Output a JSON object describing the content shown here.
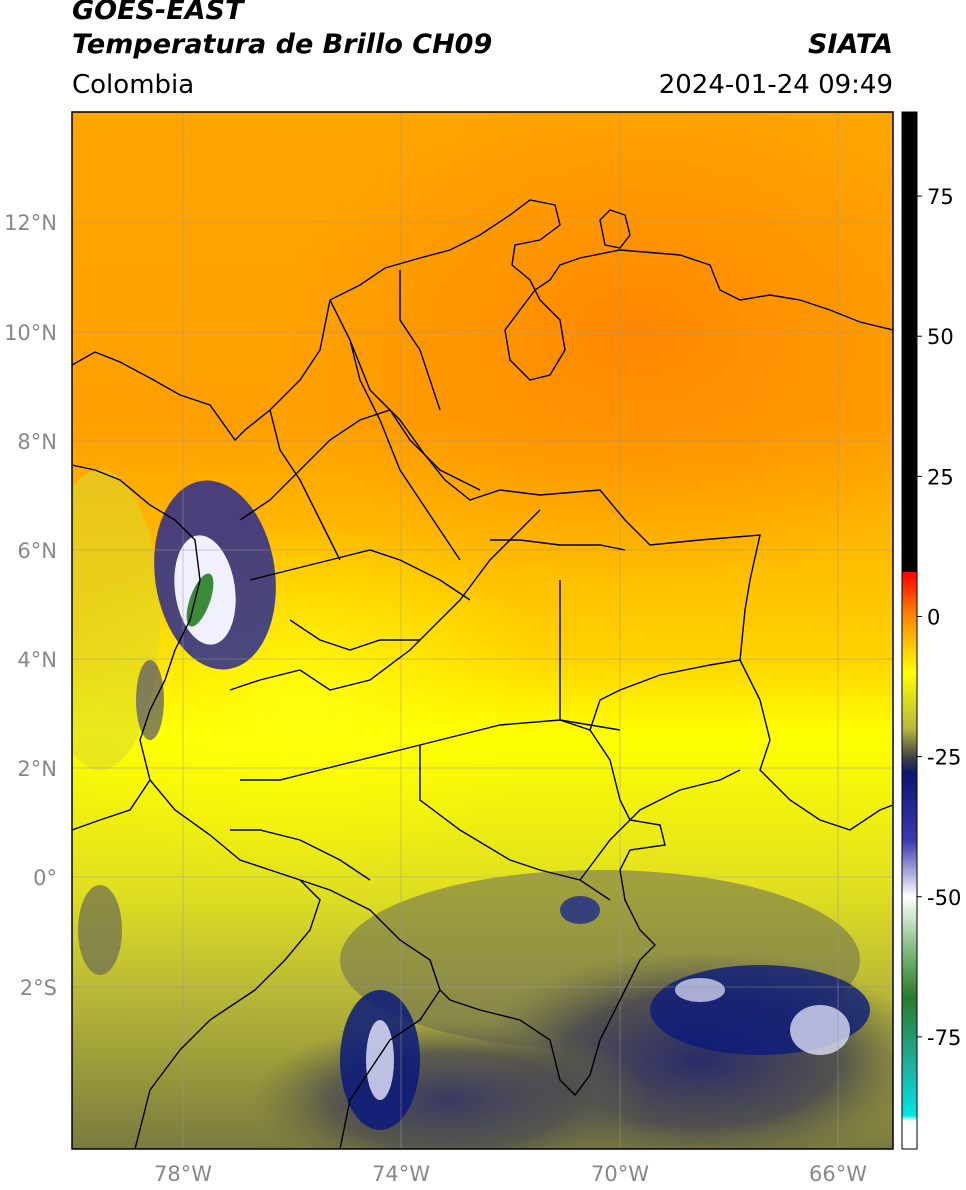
{
  "header": {
    "satellite": "GOES-EAST",
    "product": "Temperatura de Brillo CH09",
    "region": "Colombia",
    "source": "SIATA",
    "datetime": "2024-01-24 09:49"
  },
  "map": {
    "longitude_labels": [
      "78°W",
      "74°W",
      "70°W",
      "66°W"
    ],
    "latitude_labels": [
      "12°N",
      "10°N",
      "8°N",
      "6°N",
      "4°N",
      "2°N",
      "0°",
      "2°S"
    ],
    "colors": {
      "warm_orange": "#ff8c00",
      "orange": "#ffa500",
      "yellow": "#ffff00",
      "olive": "#c8c83a",
      "dark_olive": "#5a5a3a",
      "navy": "#0b1a7a",
      "white": "#f5f5ff",
      "green": "#3a8a3a"
    }
  },
  "colorbar": {
    "tick_labels": [
      "75",
      "50",
      "25",
      "0",
      "-25",
      "-50",
      "-75"
    ],
    "tick_values": [
      75,
      50,
      25,
      0,
      -25,
      -50,
      -75
    ],
    "range": [
      -95,
      90
    ],
    "stops": [
      {
        "v": 90,
        "c": "#000000"
      },
      {
        "v": 8,
        "c": "#000000"
      },
      {
        "v": 7.9,
        "c": "#ff0000"
      },
      {
        "v": 0,
        "c": "#ff8a00"
      },
      {
        "v": -10,
        "c": "#ffff00"
      },
      {
        "v": -20,
        "c": "#b8b840"
      },
      {
        "v": -25,
        "c": "#444444"
      },
      {
        "v": -28,
        "c": "#0a1670"
      },
      {
        "v": -40,
        "c": "#3a3ab0"
      },
      {
        "v": -50,
        "c": "#ffffff"
      },
      {
        "v": -60,
        "c": "#7ab87a"
      },
      {
        "v": -68,
        "c": "#2a7a2a"
      },
      {
        "v": -80,
        "c": "#20b0a0"
      },
      {
        "v": -89,
        "c": "#00e5e5"
      },
      {
        "v": -90,
        "c": "#ffffff"
      },
      {
        "v": -95,
        "c": "#ffffff"
      }
    ]
  }
}
